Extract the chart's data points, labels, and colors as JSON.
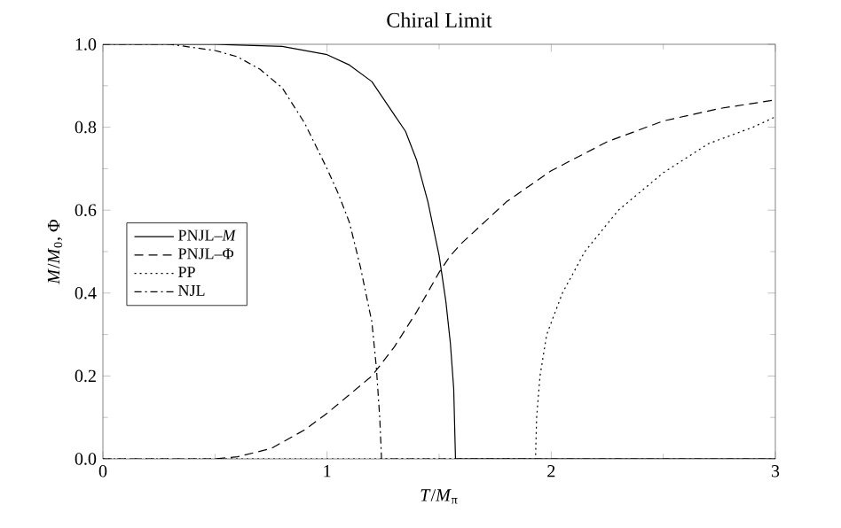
{
  "chart_data": {
    "type": "line",
    "title": "Chiral Limit",
    "xlabel": "*T*/*M*$_{π}$",
    "ylabel": "*M*/*M*$_{0}$, Φ",
    "xlim": [
      0,
      3
    ],
    "ylim": [
      0,
      1
    ],
    "xticks": [
      0,
      1,
      2,
      3
    ],
    "yticks": [
      {
        "value": 0,
        "label": "0.0"
      },
      {
        "value": 0.2,
        "label": "0.2"
      },
      {
        "value": 0.4,
        "label": "0.4"
      },
      {
        "value": 0.6,
        "label": "0.6"
      },
      {
        "value": 0.8,
        "label": "0.8"
      },
      {
        "value": 1,
        "label": "1.0"
      }
    ],
    "grid": false,
    "legend": "left",
    "marker": "none",
    "series": [
      {
        "name": "PNJL–*M*",
        "color": "#000000",
        "line_style": "solid",
        "x": [
          0,
          0.5,
          0.8,
          1.0,
          1.1,
          1.2,
          1.3,
          1.35,
          1.4,
          1.45,
          1.5,
          1.53,
          1.55,
          1.565,
          1.573,
          3
        ],
        "values": [
          1,
          1,
          0.995,
          0.975,
          0.95,
          0.91,
          0.83,
          0.79,
          0.72,
          0.62,
          0.49,
          0.38,
          0.28,
          0.17,
          0,
          0
        ]
      },
      {
        "name": "PNJL–Φ",
        "color": "#000000",
        "line_style": "dashed",
        "x": [
          0,
          0.5,
          0.6,
          0.75,
          0.9,
          1.0,
          1.1,
          1.2,
          1.3,
          1.4,
          1.5,
          1.55,
          1.6,
          1.8,
          2.0,
          2.25,
          2.5,
          2.75,
          3
        ],
        "values": [
          0,
          0,
          0.005,
          0.025,
          0.07,
          0.11,
          0.155,
          0.2,
          0.27,
          0.355,
          0.45,
          0.49,
          0.52,
          0.62,
          0.695,
          0.765,
          0.815,
          0.845,
          0.866
        ]
      },
      {
        "name": "PP",
        "color": "#000000",
        "line_style": "dotted",
        "x": [
          0,
          1.93,
          1.935,
          1.95,
          1.98,
          2.05,
          2.15,
          2.3,
          2.5,
          2.7,
          2.9,
          3
        ],
        "values": [
          0,
          0,
          0.1,
          0.2,
          0.3,
          0.4,
          0.5,
          0.6,
          0.69,
          0.76,
          0.8,
          0.825
        ]
      },
      {
        "name": "NJL",
        "color": "#000000",
        "line_style": "dashdot",
        "x": [
          0,
          0.3,
          0.5,
          0.6,
          0.7,
          0.8,
          0.9,
          1.0,
          1.05,
          1.1,
          1.15,
          1.2,
          1.22,
          1.235,
          1.243,
          3
        ],
        "values": [
          1,
          1,
          0.985,
          0.97,
          0.94,
          0.895,
          0.81,
          0.7,
          0.64,
          0.57,
          0.46,
          0.33,
          0.22,
          0.1,
          0,
          0
        ]
      }
    ]
  }
}
